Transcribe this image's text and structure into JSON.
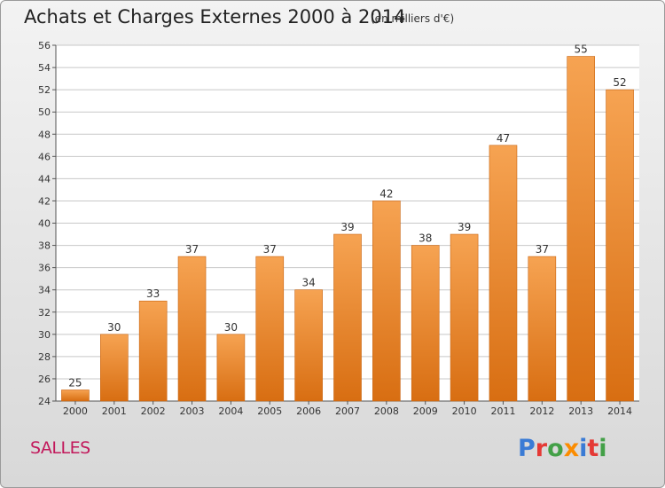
{
  "header": {
    "title": "Achats et Charges Externes 2000 à 2014",
    "unit": "(en milliers d'€)"
  },
  "location": "SALLES",
  "logo": {
    "text": "Proxiti",
    "colors": [
      "#3a7bd5",
      "#e53935",
      "#43a047",
      "#fb8c00",
      "#3a7bd5",
      "#e53935",
      "#43a047"
    ]
  },
  "colors": {
    "bar_light": "#f6a352",
    "bar_dark": "#d86e12",
    "grid": "#c8c8c8",
    "plot_bg": "#ffffff"
  },
  "chart_data": {
    "type": "bar",
    "categories": [
      "2000",
      "2001",
      "2002",
      "2003",
      "2004",
      "2005",
      "2006",
      "2007",
      "2008",
      "2009",
      "2010",
      "2011",
      "2012",
      "2013",
      "2014"
    ],
    "values": [
      25,
      30,
      33,
      37,
      30,
      37,
      34,
      39,
      42,
      38,
      39,
      47,
      37,
      55,
      52
    ],
    "ylim": [
      24,
      56
    ],
    "yticks": [
      24,
      26,
      28,
      30,
      32,
      34,
      36,
      38,
      40,
      42,
      44,
      46,
      48,
      50,
      52,
      54,
      56
    ],
    "grid": true,
    "data_labels": true
  }
}
